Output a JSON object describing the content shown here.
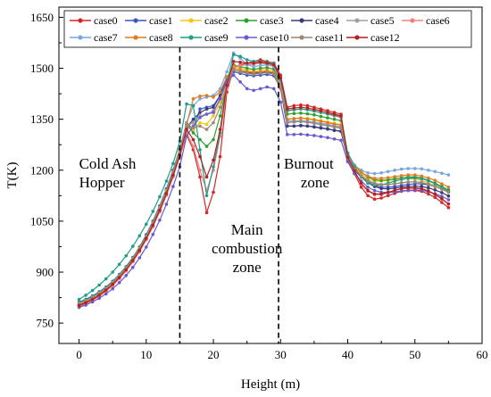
{
  "chart_data": {
    "type": "line",
    "title": "",
    "xlabel": "Height (m)",
    "ylabel": "T(K)",
    "xlim": [
      -3,
      60
    ],
    "ylim": [
      690,
      1680
    ],
    "xticks": [
      0,
      10,
      20,
      30,
      40,
      50,
      60
    ],
    "yticks": [
      750,
      900,
      1050,
      1200,
      1350,
      1500,
      1650
    ],
    "grid": false,
    "legend_position": "top",
    "zone_dividers": [
      15,
      29.7
    ],
    "annotations": [
      {
        "text": "Cold Ash",
        "x": 0,
        "y": 1205
      },
      {
        "text": "Hopper",
        "x": 0,
        "y": 1150
      },
      {
        "text": "Main",
        "x": 25,
        "y": 1010
      },
      {
        "text": "combustion",
        "x": 25,
        "y": 955
      },
      {
        "text": "zone",
        "x": 25,
        "y": 900
      },
      {
        "text": "Burnout",
        "x": 30.5,
        "y": 1205
      },
      {
        "text": "zone",
        "x": 33,
        "y": 1150
      }
    ],
    "x": [
      0,
      1,
      2,
      3,
      4,
      5,
      6,
      7,
      8,
      9,
      10,
      11,
      12,
      13,
      14,
      15,
      16,
      17,
      18,
      19,
      20,
      21,
      22,
      23,
      24,
      25,
      26,
      27,
      28,
      29,
      30,
      31,
      32,
      33,
      34,
      35,
      36,
      37,
      38,
      39,
      40,
      41,
      42,
      43,
      44,
      45,
      46,
      47,
      48,
      49,
      50,
      51,
      52,
      53,
      54,
      55
    ],
    "series": [
      {
        "name": "case0",
        "color": "#d62728",
        "values": [
          800,
          808,
          818,
          830,
          845,
          862,
          882,
          905,
          932,
          962,
          997,
          1035,
          1080,
          1130,
          1185,
          1240,
          1305,
          1260,
          1180,
          1075,
          1135,
          1240,
          1430,
          1500,
          1510,
          1515,
          1520,
          1525,
          1520,
          1515,
          1480,
          1385,
          1390,
          1392,
          1390,
          1385,
          1380,
          1375,
          1370,
          1365,
          1230,
          1190,
          1150,
          1125,
          1115,
          1118,
          1125,
          1132,
          1138,
          1140,
          1140,
          1138,
          1130,
          1120,
          1105,
          1090
        ]
      },
      {
        "name": "case1",
        "color": "#3b55c8",
        "values": [
          812,
          820,
          830,
          842,
          856,
          873,
          893,
          916,
          943,
          974,
          1010,
          1050,
          1095,
          1145,
          1200,
          1262,
          1340,
          1320,
          1380,
          1385,
          1390,
          1420,
          1470,
          1490,
          1485,
          1480,
          1478,
          1480,
          1482,
          1478,
          1440,
          1330,
          1330,
          1332,
          1330,
          1328,
          1325,
          1322,
          1318,
          1315,
          1240,
          1205,
          1185,
          1165,
          1155,
          1150,
          1150,
          1152,
          1155,
          1158,
          1160,
          1160,
          1157,
          1152,
          1145,
          1138
        ]
      },
      {
        "name": "case2",
        "color": "#f5c518",
        "values": [
          806,
          814,
          824,
          836,
          850,
          867,
          887,
          910,
          937,
          968,
          1003,
          1043,
          1088,
          1138,
          1193,
          1255,
          1330,
          1320,
          1340,
          1335,
          1360,
          1400,
          1450,
          1505,
          1500,
          1495,
          1492,
          1495,
          1497,
          1493,
          1450,
          1350,
          1352,
          1354,
          1352,
          1350,
          1346,
          1342,
          1338,
          1334,
          1245,
          1210,
          1190,
          1175,
          1168,
          1168,
          1170,
          1172,
          1174,
          1175,
          1174,
          1170,
          1163,
          1155,
          1146,
          1138
        ]
      },
      {
        "name": "case3",
        "color": "#2ca02c",
        "values": [
          810,
          818,
          828,
          840,
          854,
          871,
          891,
          914,
          941,
          972,
          1007,
          1047,
          1092,
          1142,
          1197,
          1260,
          1335,
          1310,
          1290,
          1270,
          1290,
          1360,
          1450,
          1510,
          1505,
          1500,
          1497,
          1500,
          1502,
          1498,
          1455,
          1365,
          1367,
          1368,
          1366,
          1363,
          1358,
          1354,
          1350,
          1346,
          1250,
          1215,
          1195,
          1180,
          1172,
          1170,
          1172,
          1175,
          1178,
          1180,
          1180,
          1177,
          1170,
          1162,
          1152,
          1142
        ]
      },
      {
        "name": "case4",
        "color": "#3c3c7a",
        "values": [
          802,
          810,
          820,
          832,
          846,
          863,
          883,
          906,
          933,
          964,
          999,
          1039,
          1084,
          1134,
          1189,
          1250,
          1325,
          1350,
          1370,
          1380,
          1385,
          1420,
          1475,
          1495,
          1490,
          1487,
          1485,
          1487,
          1489,
          1485,
          1440,
          1330,
          1330,
          1331,
          1330,
          1327,
          1324,
          1321,
          1317,
          1314,
          1235,
          1200,
          1180,
          1163,
          1152,
          1146,
          1145,
          1147,
          1150,
          1152,
          1153,
          1152,
          1148,
          1142,
          1134,
          1124
        ]
      },
      {
        "name": "case5",
        "color": "#a0a0a0",
        "values": [
          804,
          812,
          822,
          834,
          848,
          865,
          885,
          908,
          935,
          966,
          1001,
          1041,
          1086,
          1136,
          1191,
          1252,
          1330,
          1340,
          1360,
          1365,
          1375,
          1410,
          1460,
          1500,
          1495,
          1490,
          1488,
          1490,
          1492,
          1488,
          1445,
          1340,
          1342,
          1343,
          1342,
          1339,
          1335,
          1332,
          1328,
          1324,
          1240,
          1205,
          1185,
          1170,
          1162,
          1158,
          1158,
          1160,
          1163,
          1165,
          1166,
          1164,
          1159,
          1152,
          1144,
          1135
        ]
      },
      {
        "name": "case6",
        "color": "#f08080",
        "values": [
          798,
          806,
          816,
          828,
          843,
          860,
          880,
          903,
          930,
          960,
          995,
          1033,
          1077,
          1126,
          1180,
          1240,
          1310,
          1270,
          1200,
          1140,
          1200,
          1300,
          1440,
          1505,
          1508,
          1510,
          1512,
          1515,
          1512,
          1507,
          1470,
          1375,
          1378,
          1380,
          1378,
          1374,
          1370,
          1365,
          1360,
          1355,
          1235,
          1195,
          1160,
          1138,
          1128,
          1128,
          1133,
          1140,
          1145,
          1147,
          1147,
          1145,
          1138,
          1128,
          1115,
          1100
        ]
      },
      {
        "name": "case7",
        "color": "#7aa6e0",
        "values": [
          808,
          816,
          826,
          838,
          852,
          869,
          889,
          912,
          939,
          970,
          1005,
          1045,
          1090,
          1140,
          1195,
          1257,
          1340,
          1390,
          1410,
          1415,
          1420,
          1440,
          1490,
          1545,
          1530,
          1510,
          1505,
          1508,
          1510,
          1505,
          1460,
          1345,
          1345,
          1346,
          1344,
          1342,
          1338,
          1335,
          1331,
          1327,
          1250,
          1215,
          1200,
          1192,
          1190,
          1192,
          1196,
          1200,
          1203,
          1205,
          1205,
          1204,
          1200,
          1196,
          1191,
          1186
        ]
      },
      {
        "name": "case8",
        "color": "#e07b24",
        "values": [
          806,
          814,
          824,
          836,
          850,
          867,
          887,
          910,
          937,
          968,
          1003,
          1043,
          1088,
          1138,
          1193,
          1255,
          1335,
          1410,
          1418,
          1420,
          1415,
          1430,
          1475,
          1500,
          1495,
          1490,
          1488,
          1490,
          1492,
          1488,
          1445,
          1350,
          1352,
          1353,
          1351,
          1348,
          1344,
          1340,
          1336,
          1332,
          1248,
          1212,
          1195,
          1182,
          1176,
          1176,
          1178,
          1181,
          1184,
          1186,
          1186,
          1183,
          1177,
          1170,
          1160,
          1150
        ]
      },
      {
        "name": "case9",
        "color": "#1f9e89",
        "values": [
          820,
          832,
          846,
          862,
          880,
          900,
          923,
          948,
          976,
          1007,
          1041,
          1079,
          1122,
          1168,
          1220,
          1285,
          1395,
          1390,
          1260,
          1125,
          1210,
          1310,
          1455,
          1540,
          1535,
          1525,
          1520,
          1520,
          1518,
          1513,
          1470,
          1375,
          1378,
          1380,
          1378,
          1374,
          1370,
          1366,
          1362,
          1358,
          1250,
          1210,
          1180,
          1162,
          1156,
          1157,
          1162,
          1168,
          1173,
          1176,
          1177,
          1175,
          1169,
          1160,
          1149,
          1138
        ]
      },
      {
        "name": "case10",
        "color": "#6a5acd",
        "values": [
          796,
          803,
          812,
          823,
          836,
          851,
          869,
          890,
          914,
          942,
          974,
          1011,
          1053,
          1100,
          1152,
          1210,
          1300,
          1330,
          1355,
          1365,
          1370,
          1410,
          1460,
          1480,
          1460,
          1440,
          1435,
          1440,
          1445,
          1440,
          1400,
          1305,
          1305,
          1306,
          1304,
          1302,
          1299,
          1296,
          1292,
          1288,
          1225,
          1190,
          1168,
          1150,
          1140,
          1135,
          1134,
          1136,
          1139,
          1141,
          1142,
          1141,
          1137,
          1131,
          1123,
          1113
        ]
      },
      {
        "name": "case11",
        "color": "#9c8676",
        "values": [
          804,
          812,
          822,
          834,
          848,
          865,
          885,
          908,
          935,
          966,
          1001,
          1041,
          1086,
          1136,
          1191,
          1252,
          1330,
          1325,
          1330,
          1320,
          1340,
          1385,
          1450,
          1495,
          1490,
          1485,
          1482,
          1485,
          1487,
          1483,
          1440,
          1340,
          1342,
          1343,
          1341,
          1338,
          1334,
          1331,
          1327,
          1323,
          1238,
          1203,
          1183,
          1168,
          1160,
          1157,
          1158,
          1160,
          1163,
          1165,
          1166,
          1164,
          1159,
          1152,
          1144,
          1135
        ]
      },
      {
        "name": "case12",
        "color": "#b22222",
        "values": [
          802,
          810,
          820,
          832,
          847,
          864,
          884,
          907,
          934,
          964,
          999,
          1038,
          1082,
          1131,
          1185,
          1245,
          1320,
          1290,
          1240,
          1180,
          1230,
          1320,
          1450,
          1520,
          1518,
          1515,
          1515,
          1518,
          1515,
          1510,
          1472,
          1380,
          1383,
          1385,
          1383,
          1379,
          1375,
          1370,
          1365,
          1360,
          1238,
          1198,
          1162,
          1140,
          1130,
          1130,
          1135,
          1141,
          1146,
          1148,
          1148,
          1146,
          1139,
          1129,
          1116,
          1101
        ]
      }
    ]
  }
}
